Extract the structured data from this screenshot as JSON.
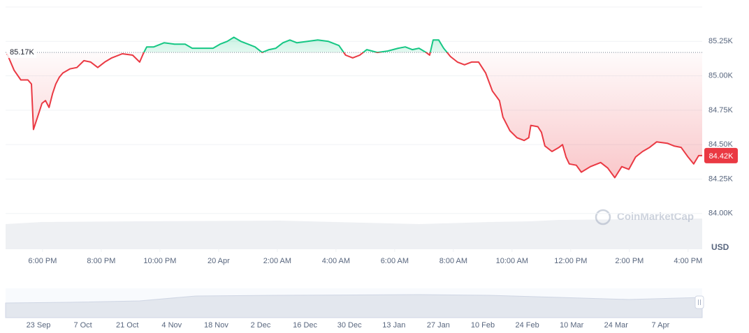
{
  "chart_data": {
    "type": "line",
    "up_color": "#16c784",
    "down_color": "#ea3943",
    "x": [
      16.79,
      17.03,
      17.26,
      17.5,
      17.62,
      17.69,
      17.86,
      17.98,
      18.1,
      18.22,
      18.34,
      18.45,
      18.57,
      18.69,
      18.93,
      19.17,
      19.41,
      19.64,
      19.88,
      20.12,
      20.36,
      20.72,
      21.07,
      21.31,
      21.43,
      21.55,
      21.79,
      22.14,
      22.5,
      22.86,
      23.1,
      23.45,
      23.81,
      24.05,
      24.29,
      24.52,
      24.76,
      25,
      25.24,
      25.48,
      25.72,
      25.95,
      26.19,
      26.43,
      26.67,
      27.03,
      27.38,
      27.74,
      28.1,
      28.33,
      28.57,
      28.81,
      29.05,
      29.41,
      29.76,
      30.12,
      30.36,
      30.6,
      30.83,
      31.07,
      31.19,
      31.31,
      31.5,
      31.67,
      31.9,
      32.14,
      32.38,
      32.62,
      32.86,
      33.1,
      33.33,
      33.57,
      33.69,
      33.93,
      34.17,
      34.41,
      34.57,
      34.64,
      34.88,
      35,
      35.12,
      35.36,
      35.6,
      35.72,
      35.84,
      35.95,
      36.19,
      36.36,
      36.67,
      37.02,
      37.26,
      37.5,
      37.74,
      37.98,
      38.21,
      38.45,
      38.69,
      38.93,
      39.29,
      39.52,
      39.76,
      40,
      40.19,
      40.36,
      40.48
    ],
    "values": [
      85.16,
      85.04,
      84.97,
      84.97,
      84.94,
      84.61,
      84.72,
      84.8,
      84.82,
      84.77,
      84.87,
      84.94,
      84.99,
      85.02,
      85.05,
      85.06,
      85.11,
      85.1,
      85.06,
      85.1,
      85.13,
      85.16,
      85.15,
      85.1,
      85.16,
      85.21,
      85.21,
      85.24,
      85.23,
      85.23,
      85.2,
      85.2,
      85.2,
      85.23,
      85.25,
      85.28,
      85.25,
      85.23,
      85.21,
      85.17,
      85.19,
      85.2,
      85.24,
      85.26,
      85.24,
      85.25,
      85.26,
      85.25,
      85.22,
      85.15,
      85.13,
      85.15,
      85.19,
      85.17,
      85.18,
      85.2,
      85.21,
      85.19,
      85.2,
      85.17,
      85.15,
      85.26,
      85.26,
      85.2,
      85.14,
      85.1,
      85.08,
      85.1,
      85.1,
      85.02,
      84.89,
      84.82,
      84.7,
      84.6,
      84.55,
      84.53,
      84.55,
      84.64,
      84.63,
      84.59,
      84.49,
      84.45,
      84.48,
      84.5,
      84.41,
      84.36,
      84.35,
      84.3,
      84.34,
      84.37,
      84.33,
      84.26,
      84.34,
      84.32,
      84.41,
      84.45,
      84.48,
      84.52,
      84.51,
      84.49,
      84.48,
      84.41,
      84.36,
      84.42,
      84.42
    ],
    "baseline": {
      "value": 85.17,
      "label": "85.17K"
    },
    "current_price": {
      "value": 84.42,
      "label": "84.42K"
    },
    "xlim": [
      16.74,
      40.48
    ],
    "ylim": [
      83.74,
      85.5
    ],
    "xticks": [
      {
        "value": 18,
        "label": "6:00 PM"
      },
      {
        "value": 20,
        "label": "8:00 PM"
      },
      {
        "value": 22,
        "label": "10:00 PM"
      },
      {
        "value": 24,
        "label": "20 Apr"
      },
      {
        "value": 26,
        "label": "2:00 AM"
      },
      {
        "value": 28,
        "label": "4:00 AM"
      },
      {
        "value": 30,
        "label": "6:00 AM"
      },
      {
        "value": 32,
        "label": "8:00 AM"
      },
      {
        "value": 34,
        "label": "10:00 AM"
      },
      {
        "value": 36,
        "label": "12:00 PM"
      },
      {
        "value": 38,
        "label": "2:00 PM"
      },
      {
        "value": 40,
        "label": "4:00 PM"
      }
    ],
    "yticks": [
      {
        "value": 85.25,
        "label": "85.25K"
      },
      {
        "value": 85,
        "label": "85.00K"
      },
      {
        "value": 84.75,
        "label": "84.75K"
      },
      {
        "value": 84.5,
        "label": "84.50K"
      },
      {
        "value": 84.25,
        "label": "84.25K"
      },
      {
        "value": 84,
        "label": "84.00K"
      }
    ],
    "grid": true,
    "y_axis_label": "USD",
    "watermark": "CoinMarketCap",
    "navigator_labels": [
      "23 Sep",
      "7 Oct",
      "21 Oct",
      "4 Nov",
      "18 Nov",
      "2 Dec",
      "16 Dec",
      "30 Dec",
      "13 Jan",
      "27 Jan",
      "10 Feb",
      "24 Feb",
      "10 Mar",
      "24 Mar",
      "7 Apr"
    ]
  }
}
